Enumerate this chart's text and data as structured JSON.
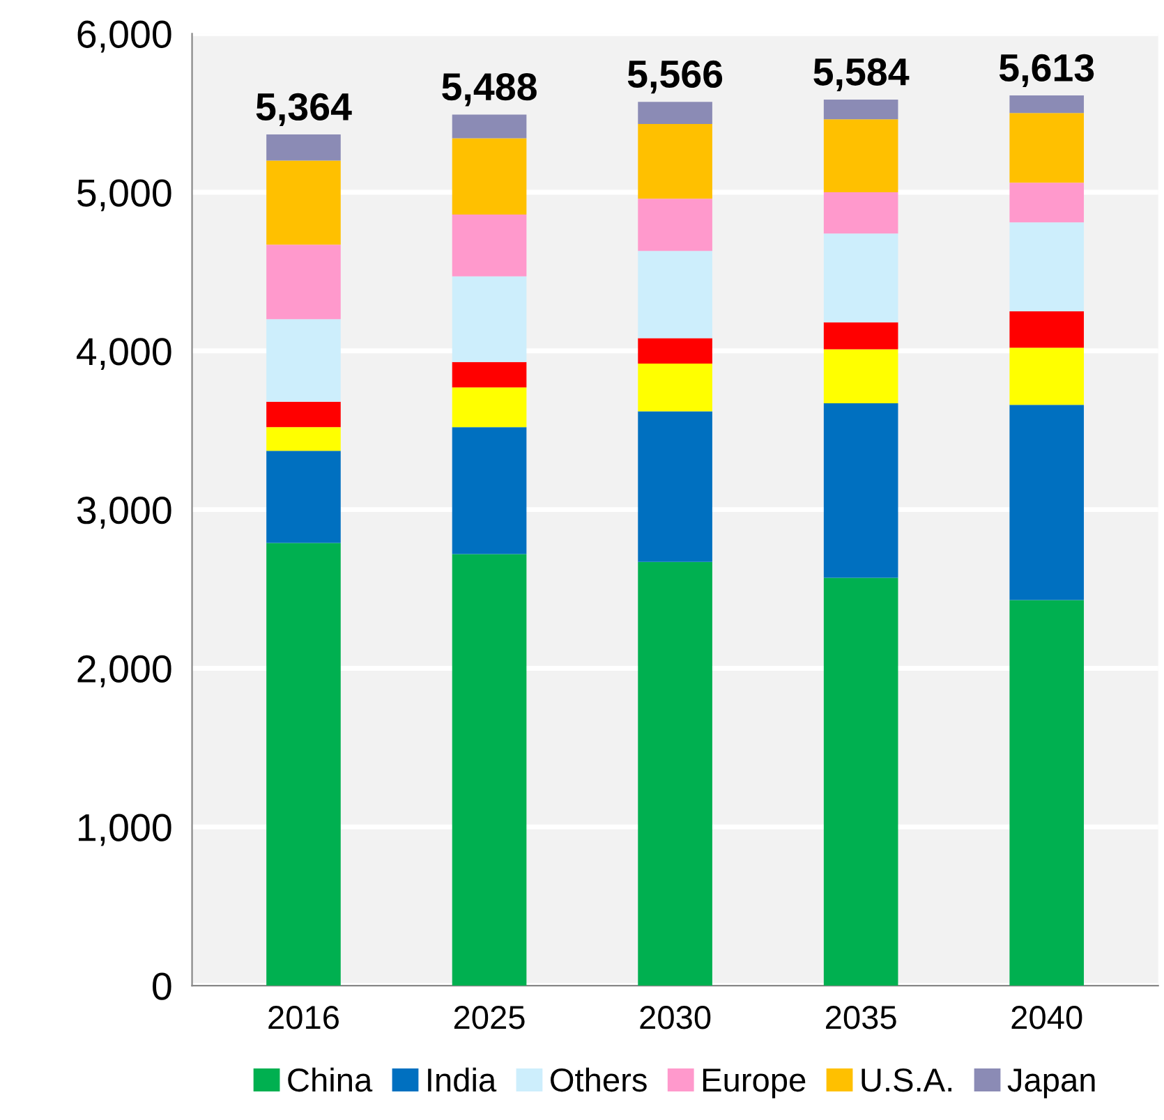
{
  "chart_data": {
    "type": "bar",
    "stacked": true,
    "categories": [
      "2016",
      "2025",
      "2030",
      "2035",
      "2040"
    ],
    "series": [
      {
        "name": "China",
        "color": "#00b050",
        "values": [
          2790,
          2720,
          2670,
          2570,
          2430
        ]
      },
      {
        "name": "India",
        "color": "#0070c0",
        "values": [
          580,
          800,
          950,
          1100,
          1230
        ]
      },
      {
        "color": "#ffff00",
        "values": [
          150,
          250,
          300,
          340,
          360
        ]
      },
      {
        "color": "#ff0000",
        "values": [
          160,
          160,
          160,
          170,
          230
        ]
      },
      {
        "name": "Others",
        "color": "#cdeefc",
        "values": [
          520,
          540,
          550,
          560,
          560
        ]
      },
      {
        "name": "Europe",
        "color": "#ff99cc",
        "values": [
          470,
          390,
          330,
          260,
          250
        ]
      },
      {
        "name": "U.S.A.",
        "color": "#ffc000",
        "values": [
          530,
          480,
          470,
          460,
          440
        ]
      },
      {
        "name": "Japan",
        "color": "#8b8bb5",
        "values": [
          164,
          150,
          140,
          124,
          110
        ]
      }
    ],
    "totals": [
      "5,364",
      "5,488",
      "5,566",
      "5,584",
      "5,613"
    ],
    "ylim": [
      0,
      6000
    ],
    "yticks": [
      {
        "value": 0,
        "label": "0"
      },
      {
        "value": 1000,
        "label": "1,000"
      },
      {
        "value": 2000,
        "label": "2,000"
      },
      {
        "value": 3000,
        "label": "3,000"
      },
      {
        "value": 4000,
        "label": "4,000"
      },
      {
        "value": 5000,
        "label": "5,000"
      },
      {
        "value": 6000,
        "label": "6,000"
      }
    ],
    "grid": "y",
    "legend": "bottom"
  }
}
